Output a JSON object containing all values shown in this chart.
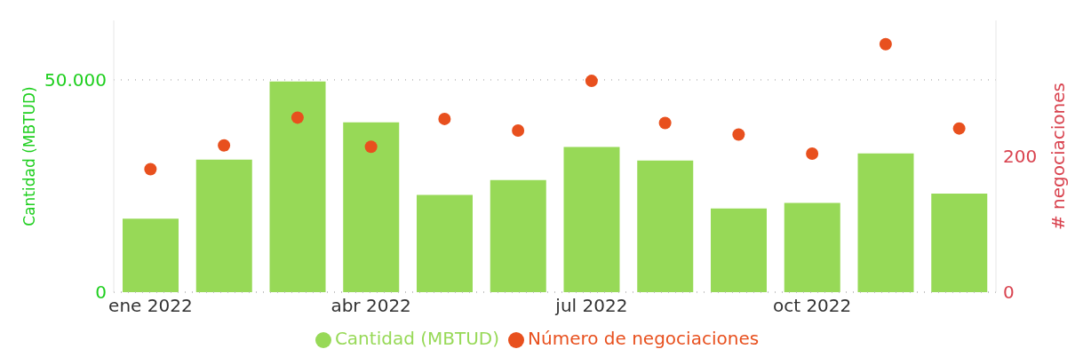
{
  "chart_data": {
    "type": "bar",
    "categories": [
      "ene 2022",
      null,
      null,
      "abr 2022",
      null,
      null,
      "jul 2022",
      null,
      null,
      "oct 2022",
      null,
      null
    ],
    "series": [
      {
        "name": "Cantidad (MBTUD)",
        "color": "#97d957",
        "type": "bar",
        "values": [
          17300,
          31200,
          49600,
          40000,
          22900,
          26400,
          34200,
          31000,
          19700,
          21000,
          32700,
          23200
        ]
      },
      {
        "name": "Número de negociaciones",
        "color": "#e8501e",
        "type": "scatter",
        "axis": "y2",
        "marker": "circle",
        "values": [
          181,
          216,
          257,
          214,
          255,
          238,
          311,
          249,
          232,
          204,
          365,
          241
        ]
      }
    ],
    "ylabel": "Cantidad (MBTUD)",
    "y2label": "# negociaciones",
    "ylim": [
      0,
      64000
    ],
    "yticks": [
      0,
      {
        "value": 50000,
        "label": "50.000"
      }
    ],
    "y2lim": [
      0,
      400
    ],
    "y2ticks": [
      0,
      200
    ],
    "grid": "y",
    "legend": "bottom"
  }
}
